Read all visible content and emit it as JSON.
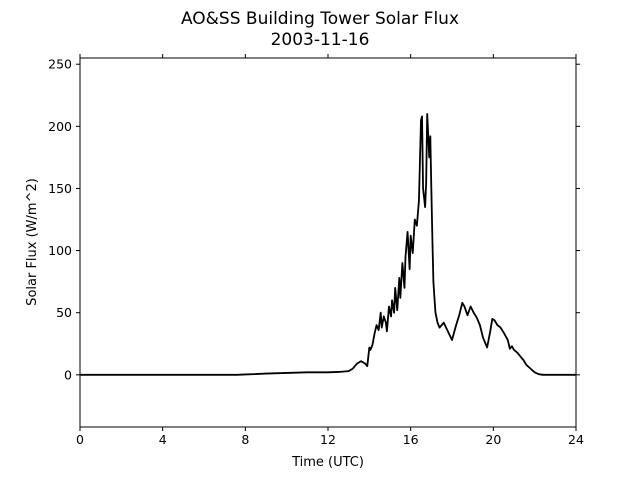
{
  "chart_data": {
    "type": "line",
    "title": "AO&SS Building Tower Solar Flux",
    "subtitle": "2003-11-16",
    "xlabel": "Time (UTC)",
    "ylabel": "Solar Flux (W/m^2)",
    "xlim": [
      0,
      24
    ],
    "ylim": [
      -42,
      255
    ],
    "xticks": [
      0,
      4,
      8,
      12,
      16,
      20,
      24
    ],
    "yticks": [
      0,
      50,
      100,
      150,
      200,
      250
    ],
    "grid": false,
    "line_color": "#000000",
    "series": [
      {
        "x": [
          0,
          2,
          4,
          6,
          7,
          7.6,
          8,
          8.5,
          9,
          10,
          11,
          12,
          12.5,
          13,
          13.2,
          13.4,
          13.6,
          13.8,
          13.9,
          14.0,
          14.05,
          14.15,
          14.25,
          14.35,
          14.45,
          14.55,
          14.6,
          14.7,
          14.8,
          14.85,
          14.95,
          15.05,
          15.1,
          15.2,
          15.25,
          15.35,
          15.45,
          15.5,
          15.6,
          15.7,
          15.75,
          15.85,
          15.95,
          16.0,
          16.1,
          16.2,
          16.3,
          16.4,
          16.5,
          16.55,
          16.6,
          16.7,
          16.75,
          16.8,
          16.9,
          16.95,
          17.0,
          17.05,
          17.1,
          17.15,
          17.2,
          17.3,
          17.4,
          17.6,
          17.8,
          18.0,
          18.2,
          18.35,
          18.5,
          18.6,
          18.75,
          18.9,
          19.05,
          19.2,
          19.35,
          19.5,
          19.7,
          19.85,
          19.95,
          20.05,
          20.2,
          20.35,
          20.5,
          20.7,
          20.8,
          20.9,
          21.0,
          21.15,
          21.3,
          21.45,
          21.6,
          21.8,
          22.0,
          22.2,
          22.4,
          22.6,
          22.8,
          23.0,
          23.5,
          24
        ],
        "y": [
          0,
          0,
          0,
          0,
          0,
          0,
          0.3,
          0.6,
          1,
          1.5,
          2,
          2,
          2.3,
          3,
          5,
          9,
          11,
          9,
          7,
          22,
          20,
          24,
          33,
          40,
          36,
          50,
          38,
          47,
          42,
          35,
          55,
          47,
          60,
          50,
          70,
          52,
          78,
          62,
          90,
          70,
          95,
          115,
          85,
          112,
          98,
          125,
          120,
          140,
          205,
          208,
          150,
          135,
          155,
          210,
          175,
          192,
          150,
          110,
          75,
          62,
          50,
          42,
          38,
          42,
          35,
          28,
          40,
          48,
          58,
          55,
          48,
          55,
          50,
          46,
          40,
          30,
          22,
          35,
          45,
          44,
          40,
          38,
          34,
          28,
          21,
          23,
          20,
          18,
          15,
          12,
          8,
          5,
          2,
          0.5,
          0,
          0,
          0,
          0,
          0,
          0
        ]
      }
    ]
  }
}
